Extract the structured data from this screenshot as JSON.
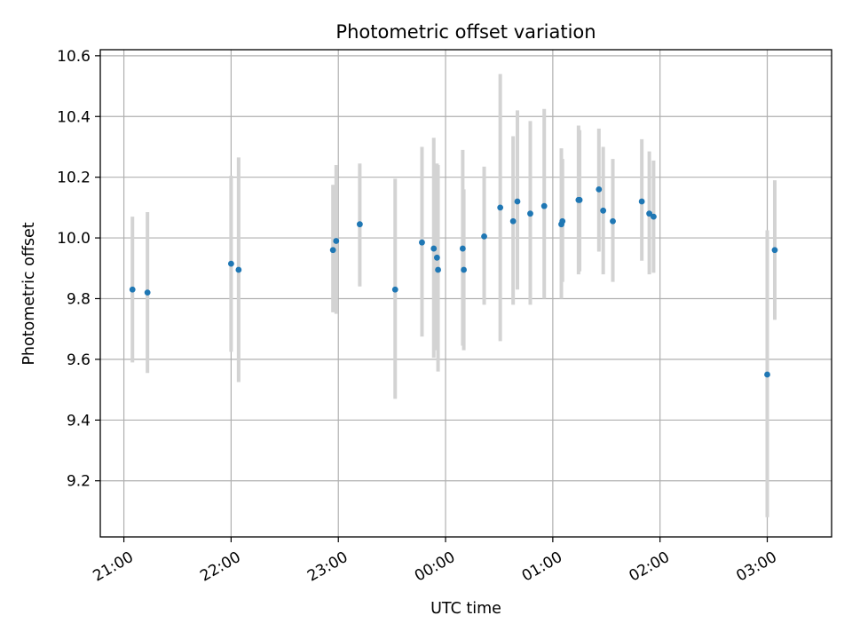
{
  "chart_data": {
    "type": "scatter",
    "title": "Photometric offset variation",
    "xlabel": "UTC time",
    "ylabel": "Photometric offset",
    "x_unit": "hours since 21:00 UTC",
    "xlim": [
      -0.22,
      6.6
    ],
    "ylim": [
      9.015,
      10.62
    ],
    "x_ticks": [
      {
        "value": 0,
        "label": "21:00"
      },
      {
        "value": 1,
        "label": "22:00"
      },
      {
        "value": 2,
        "label": "23:00"
      },
      {
        "value": 3,
        "label": "00:00"
      },
      {
        "value": 4,
        "label": "01:00"
      },
      {
        "value": 5,
        "label": "02:00"
      },
      {
        "value": 6,
        "label": "03:00"
      }
    ],
    "y_ticks": [
      {
        "value": 9.2,
        "label": "9.2"
      },
      {
        "value": 9.4,
        "label": "9.4"
      },
      {
        "value": 9.6,
        "label": "9.6"
      },
      {
        "value": 9.8,
        "label": "9.8"
      },
      {
        "value": 10.0,
        "label": "10.0"
      },
      {
        "value": 10.2,
        "label": "10.2"
      },
      {
        "value": 10.4,
        "label": "10.4"
      },
      {
        "value": 10.6,
        "label": "10.6"
      }
    ],
    "grid": true,
    "marker_color": "#1f77b4",
    "errorbar_color": "#d3d3d3",
    "series": [
      {
        "name": "offset",
        "points": [
          {
            "x": 0.08,
            "y": 9.83,
            "low": 9.59,
            "high": 10.07
          },
          {
            "x": 0.22,
            "y": 9.82,
            "low": 9.555,
            "high": 10.085
          },
          {
            "x": 1.0,
            "y": 9.915,
            "low": 9.625,
            "high": 10.205
          },
          {
            "x": 1.07,
            "y": 9.895,
            "low": 9.525,
            "high": 10.265
          },
          {
            "x": 1.95,
            "y": 9.96,
            "low": 9.755,
            "high": 10.175
          },
          {
            "x": 1.98,
            "y": 9.99,
            "low": 9.75,
            "high": 10.24
          },
          {
            "x": 2.2,
            "y": 10.045,
            "low": 9.84,
            "high": 10.245
          },
          {
            "x": 2.53,
            "y": 9.83,
            "low": 9.47,
            "high": 10.195
          },
          {
            "x": 2.78,
            "y": 9.985,
            "low": 9.675,
            "high": 10.3
          },
          {
            "x": 2.89,
            "y": 9.965,
            "low": 9.605,
            "high": 10.33
          },
          {
            "x": 2.92,
            "y": 9.935,
            "low": 9.63,
            "high": 10.245
          },
          {
            "x": 2.93,
            "y": 9.895,
            "low": 9.56,
            "high": 10.24
          },
          {
            "x": 3.16,
            "y": 9.965,
            "low": 9.645,
            "high": 10.29
          },
          {
            "x": 3.17,
            "y": 9.895,
            "low": 9.63,
            "high": 10.16
          },
          {
            "x": 3.36,
            "y": 10.005,
            "low": 9.78,
            "high": 10.235
          },
          {
            "x": 3.51,
            "y": 10.1,
            "low": 9.66,
            "high": 10.54
          },
          {
            "x": 3.63,
            "y": 10.055,
            "low": 9.78,
            "high": 10.335
          },
          {
            "x": 3.67,
            "y": 10.12,
            "low": 9.83,
            "high": 10.42
          },
          {
            "x": 3.79,
            "y": 10.08,
            "low": 9.78,
            "high": 10.385
          },
          {
            "x": 3.92,
            "y": 10.105,
            "low": 9.8,
            "high": 10.425
          },
          {
            "x": 4.08,
            "y": 10.045,
            "low": 9.8,
            "high": 10.295
          },
          {
            "x": 4.09,
            "y": 10.055,
            "low": 9.855,
            "high": 10.26
          },
          {
            "x": 4.24,
            "y": 10.125,
            "low": 9.88,
            "high": 10.37
          },
          {
            "x": 4.25,
            "y": 10.125,
            "low": 9.89,
            "high": 10.355
          },
          {
            "x": 4.43,
            "y": 10.16,
            "low": 9.955,
            "high": 10.36
          },
          {
            "x": 4.47,
            "y": 10.09,
            "low": 9.88,
            "high": 10.3
          },
          {
            "x": 4.56,
            "y": 10.055,
            "low": 9.855,
            "high": 10.26
          },
          {
            "x": 4.83,
            "y": 10.12,
            "low": 9.925,
            "high": 10.325
          },
          {
            "x": 4.9,
            "y": 10.08,
            "low": 9.88,
            "high": 10.285
          },
          {
            "x": 4.94,
            "y": 10.07,
            "low": 9.885,
            "high": 10.255
          },
          {
            "x": 6.0,
            "y": 9.55,
            "low": 9.08,
            "high": 10.025
          },
          {
            "x": 6.07,
            "y": 9.96,
            "low": 9.73,
            "high": 10.19
          }
        ]
      }
    ]
  }
}
